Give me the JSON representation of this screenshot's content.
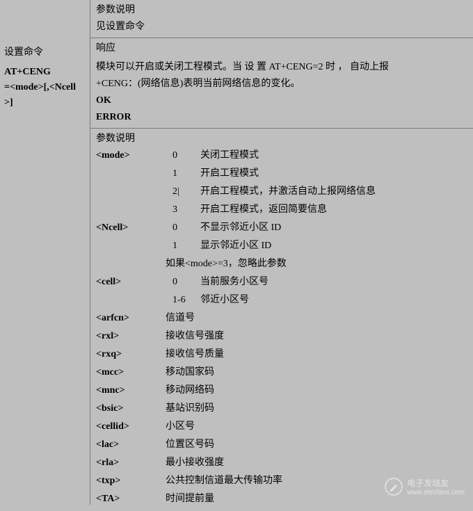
{
  "left": {
    "row1": "设置命令",
    "cmd_l1": "AT+CENG",
    "cmd_l2": "=<mode>[,<Ncell",
    "cmd_l3": ">]"
  },
  "right": {
    "sec1_l1": "参数说明",
    "sec1_l2": "见设置命令",
    "sec2_l1": "响应",
    "sec2_l2": "模块可以开启或关闭工程模式。当 设 置  AT+CENG=2 时 ， 自动上报",
    "sec2_l3": "+CENG：(网络信息)表明当前网络信息的变化。",
    "ok": "OK",
    "error": "ERROR",
    "params_header": "参数说明"
  },
  "params": [
    {
      "name": "<mode>",
      "rows": [
        {
          "v": "0",
          "d": "关闭工程模式"
        },
        {
          "v": "1",
          "d": "开启工程模式"
        },
        {
          "v": "2",
          "d": "开启工程模式，并激活自动上报网络信息",
          "cursor": true
        },
        {
          "v": "3",
          "d": "开启工程模式，返回简要信息"
        }
      ]
    },
    {
      "name": "<Ncell>",
      "rows": [
        {
          "v": "0",
          "d": "不显示邻近小区 ID"
        },
        {
          "v": "1",
          "d": "显示邻近小区 ID"
        }
      ],
      "note": "如果<mode>=3，忽略此参数"
    },
    {
      "name": "<cell>",
      "rows": [
        {
          "v": "0",
          "d": "当前服务小区号"
        },
        {
          "v": "1-6",
          "d": "邻近小区号"
        }
      ]
    },
    {
      "name": "<arfcn>",
      "desc": "信道号"
    },
    {
      "name": "<rxl>",
      "desc": "接收信号强度"
    },
    {
      "name": "<rxq>",
      "desc": "接收信号质量"
    },
    {
      "name": "<mcc>",
      "desc": "移动国家码"
    },
    {
      "name": "<mnc>",
      "desc": "移动网络码"
    },
    {
      "name": "<bsic>",
      "desc": "基站识别码"
    },
    {
      "name": "<cellid>",
      "desc": "小区号"
    },
    {
      "name": "<lac>",
      "desc": "位置区号码"
    },
    {
      "name": "<rla>",
      "desc": "最小接收强度"
    },
    {
      "name": "<txp>",
      "desc": "公共控制信道最大传输功率"
    },
    {
      "name": "<TA>",
      "desc": "时间提前量"
    }
  ],
  "watermark": {
    "l1": "电子发烧友",
    "l2": "www.elecfans.com"
  }
}
